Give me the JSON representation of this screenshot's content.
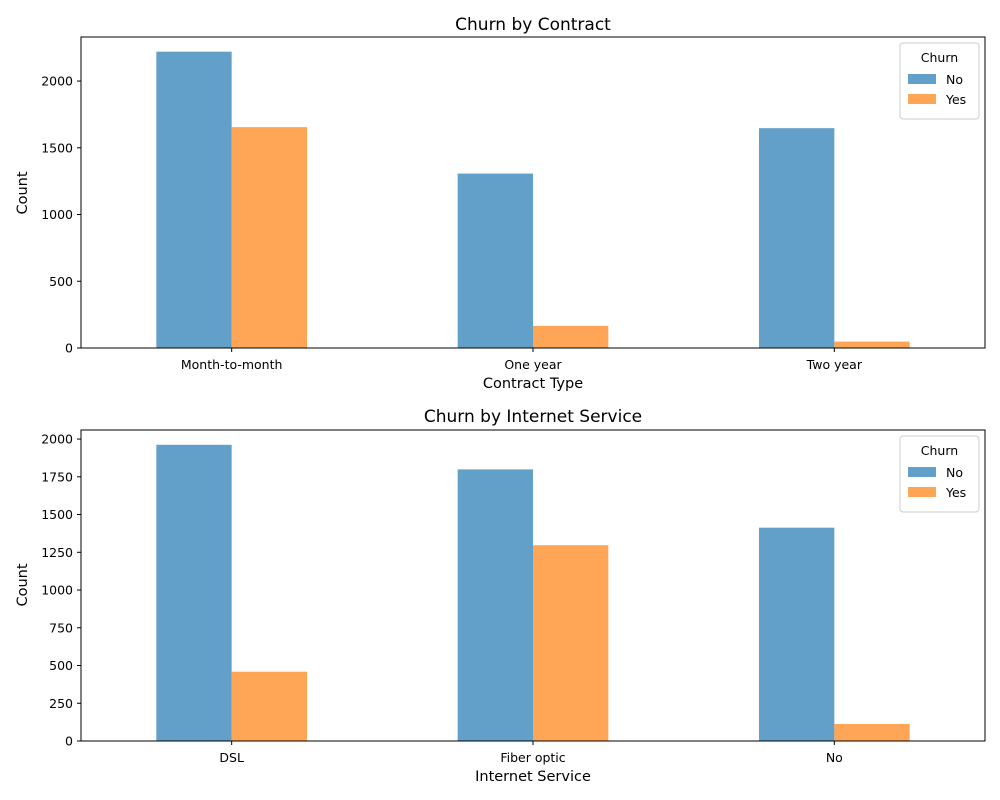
{
  "chart_data": [
    {
      "type": "bar",
      "title": "Churn by Contract",
      "xlabel": "Contract Type",
      "ylabel": "Count",
      "categories": [
        "Month-to-month",
        "One year",
        "Two year"
      ],
      "series": [
        {
          "name": "No",
          "values": [
            2220,
            1307,
            1647
          ],
          "color": "#1f77b4"
        },
        {
          "name": "Yes",
          "values": [
            1655,
            166,
            48
          ],
          "color": "#ff7f0e"
        }
      ],
      "ylim": [
        0,
        2330
      ],
      "yticks": [
        0,
        500,
        1000,
        1500,
        2000
      ],
      "legend": {
        "title": "Churn",
        "placement": "top-right"
      },
      "grid": false
    },
    {
      "type": "bar",
      "title": "Churn by Internet Service",
      "xlabel": "Internet Service",
      "ylabel": "Count",
      "categories": [
        "DSL",
        "Fiber optic",
        "No"
      ],
      "series": [
        {
          "name": "No",
          "values": [
            1962,
            1799,
            1413
          ],
          "color": "#1f77b4"
        },
        {
          "name": "Yes",
          "values": [
            459,
            1297,
            113
          ],
          "color": "#ff7f0e"
        }
      ],
      "ylim": [
        0,
        2060
      ],
      "yticks": [
        0,
        250,
        500,
        750,
        1000,
        1250,
        1500,
        1750,
        2000
      ],
      "legend": {
        "title": "Churn",
        "placement": "top-right"
      },
      "grid": false
    }
  ]
}
